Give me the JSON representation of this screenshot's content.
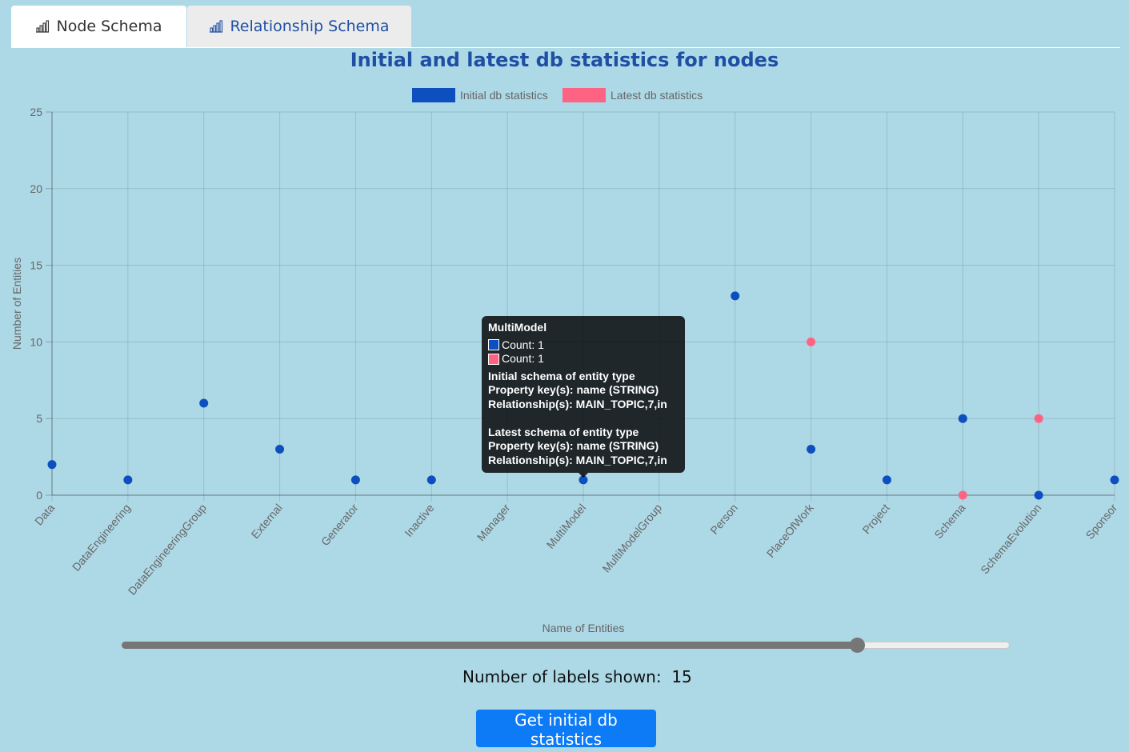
{
  "tabs": [
    {
      "label": "Node Schema",
      "icon": "bar-chart-icon"
    },
    {
      "label": "Relationship Schema",
      "icon": "bar-chart-icon"
    }
  ],
  "chart_data": {
    "type": "scatter",
    "title": "Initial and latest db statistics for nodes",
    "xlabel": "Name of Entities",
    "ylabel": "Number of Entities",
    "ylim": [
      0,
      25
    ],
    "yticks": [
      0,
      5,
      10,
      15,
      20,
      25
    ],
    "grid": true,
    "legend_position": "top-center",
    "categories": [
      "Data",
      "DataEngineering",
      "DataEngineeringGroup",
      "External",
      "Generator",
      "Inactive",
      "Manager",
      "MultiModel",
      "MultiModelGroup",
      "Person",
      "PlaceOfWork",
      "Project",
      "Schema",
      "SchemaEvolution",
      "Sponsor"
    ],
    "series": [
      {
        "name": "Initial db statistics",
        "color": "#0d4fbf",
        "points": [
          {
            "x": "Data",
            "y": 2
          },
          {
            "x": "DataEngineering",
            "y": 1
          },
          {
            "x": "DataEngineeringGroup",
            "y": 6
          },
          {
            "x": "External",
            "y": 3
          },
          {
            "x": "Generator",
            "y": 1
          },
          {
            "x": "Inactive",
            "y": 1
          },
          {
            "x": "MultiModel",
            "y": 1
          },
          {
            "x": "Person",
            "y": 13
          },
          {
            "x": "PlaceOfWork",
            "y": 3
          },
          {
            "x": "Project",
            "y": 1
          },
          {
            "x": "Schema",
            "y": 5
          },
          {
            "x": "SchemaEvolution",
            "y": 0
          },
          {
            "x": "Sponsor",
            "y": 1
          }
        ]
      },
      {
        "name": "Latest db statistics",
        "color": "#ff6384",
        "points": [
          {
            "x": "PlaceOfWork",
            "y": 10
          },
          {
            "x": "Schema",
            "y": 0
          },
          {
            "x": "SchemaEvolution",
            "y": 5
          }
        ]
      }
    ]
  },
  "tooltip": {
    "title": "MultiModel",
    "rows": [
      {
        "label": "Count: 1",
        "color": "#0d4fbf"
      },
      {
        "label": "Count: 1",
        "color": "#ff6384"
      }
    ],
    "body": "Initial schema of entity type\nProperty key(s): name (STRING)\nRelationship(s): MAIN_TOPIC,7,in\n\nLatest schema of entity type\nProperty key(s): name (STRING)\nRelationship(s): MAIN_TOPIC,7,in"
  },
  "slider": {
    "value": 15
  },
  "labels_shown": {
    "label": "Number of labels shown:",
    "value": "15"
  },
  "button": {
    "label": "Get initial db statistics"
  }
}
